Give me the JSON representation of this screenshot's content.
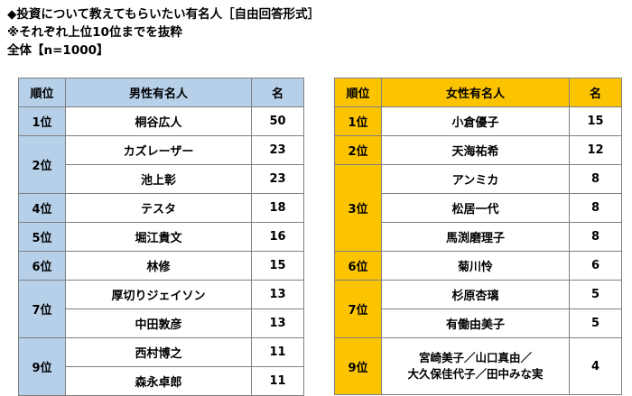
{
  "header": {
    "line1": "◆投資について教えてもらいたい有名人［自由回答形式］",
    "line2": "※それぞれ上位10位までを抜粋",
    "line3": "全体【n=1000】"
  },
  "male": {
    "col_rank": "順位",
    "col_name": "男性有名人",
    "col_count": "名",
    "groups": [
      {
        "rank": "1位",
        "rows": [
          {
            "name": "桐谷広人",
            "count": "50"
          }
        ]
      },
      {
        "rank": "2位",
        "rows": [
          {
            "name": "カズレーザー",
            "count": "23"
          },
          {
            "name": "池上彰",
            "count": "23"
          }
        ]
      },
      {
        "rank": "4位",
        "rows": [
          {
            "name": "テスタ",
            "count": "18"
          }
        ]
      },
      {
        "rank": "5位",
        "rows": [
          {
            "name": "堀江貴文",
            "count": "16"
          }
        ]
      },
      {
        "rank": "6位",
        "rows": [
          {
            "name": "林修",
            "count": "15"
          }
        ]
      },
      {
        "rank": "7位",
        "rows": [
          {
            "name": "厚切りジェイソン",
            "count": "13"
          },
          {
            "name": "中田敦彦",
            "count": "13"
          }
        ]
      },
      {
        "rank": "9位",
        "rows": [
          {
            "name": "西村博之",
            "count": "11"
          },
          {
            "name": "森永卓郎",
            "count": "11"
          }
        ]
      }
    ]
  },
  "female": {
    "col_rank": "順位",
    "col_name": "女性有名人",
    "col_count": "名",
    "groups": [
      {
        "rank": "1位",
        "rows": [
          {
            "name": "小倉優子",
            "count": "15"
          }
        ]
      },
      {
        "rank": "2位",
        "rows": [
          {
            "name": "天海祐希",
            "count": "12"
          }
        ]
      },
      {
        "rank": "3位",
        "rows": [
          {
            "name": "アンミカ",
            "count": "8"
          },
          {
            "name": "松居一代",
            "count": "8"
          },
          {
            "name": "馬渕磨理子",
            "count": "8"
          }
        ]
      },
      {
        "rank": "6位",
        "rows": [
          {
            "name": "菊川怜",
            "count": "6"
          }
        ]
      },
      {
        "rank": "7位",
        "rows": [
          {
            "name": "杉原杏璃",
            "count": "5"
          },
          {
            "name": "有働由美子",
            "count": "5"
          }
        ]
      },
      {
        "rank": "9位",
        "rows": [
          {
            "name": "宮崎美子／山口真由／",
            "name2": "大久保佳代子／田中みな実",
            "count": "4"
          }
        ]
      }
    ]
  }
}
